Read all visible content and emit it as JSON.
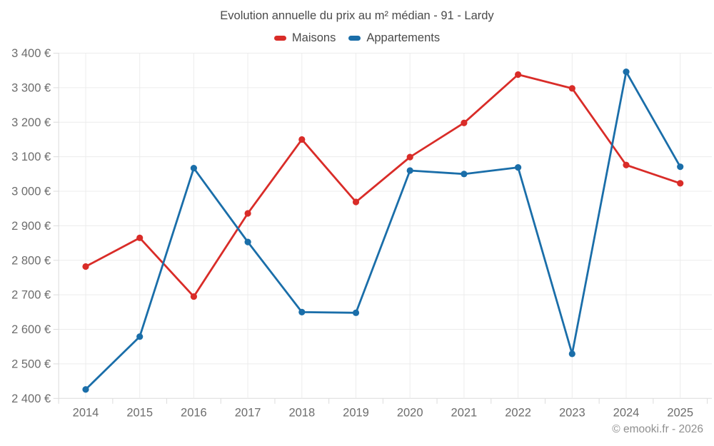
{
  "chart_data": {
    "type": "line",
    "title": "Evolution annuelle du prix au m² médian - 91 - Lardy",
    "categories": [
      "2014",
      "2015",
      "2016",
      "2017",
      "2018",
      "2019",
      "2020",
      "2021",
      "2022",
      "2023",
      "2024",
      "2025"
    ],
    "series": [
      {
        "name": "Maisons",
        "color": "#d92c28",
        "values": [
          2782,
          2865,
          2695,
          2936,
          3150,
          2969,
          3099,
          3198,
          3338,
          3298,
          3076,
          3023
        ]
      },
      {
        "name": "Appartements",
        "color": "#1a6ea9",
        "values": [
          2426,
          2579,
          3067,
          2853,
          2650,
          2648,
          3060,
          3050,
          3069,
          2529,
          3346,
          3071
        ]
      }
    ],
    "ylim": [
      2400,
      3400
    ],
    "ytick_step": 100,
    "yunit": "€",
    "xlabel": "",
    "ylabel": "",
    "grid": true,
    "legend_position": "top"
  },
  "footer": {
    "copyright": "© emooki.fr - 2026"
  }
}
